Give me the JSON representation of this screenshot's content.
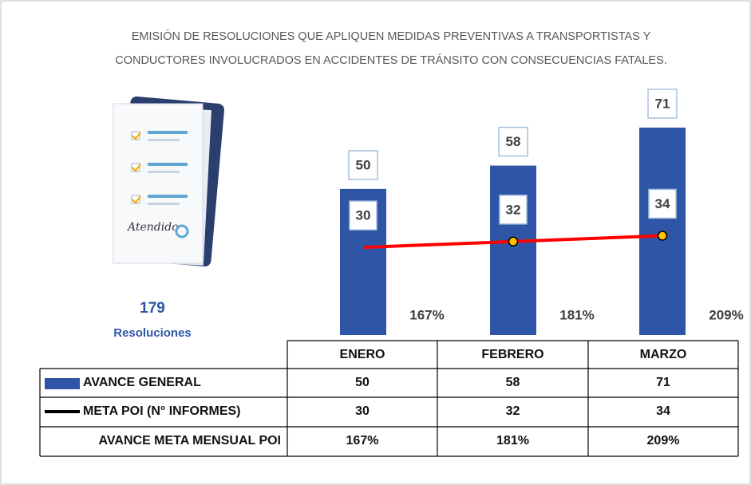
{
  "chart_data": {
    "type": "bar",
    "title": [
      "EMISIÓN DE RESOLUCIONES QUE APLIQUEN MEDIDAS PREVENTIVAS A TRANSPORTISTAS Y",
      "CONDUCTORES INVOLUCRADOS EN ACCIDENTES DE TRÁNSITO CON CONSECUENCIAS FATALES."
    ],
    "total": 179,
    "total_label": "Resoluciones",
    "categories": [
      "ENERO",
      "FEBRERO",
      "MARZO"
    ],
    "ylim": [
      0,
      80
    ],
    "series": [
      {
        "name": "AVANCE GENERAL",
        "type": "bar",
        "color": "#2f56a6",
        "values": [
          50,
          58,
          71
        ]
      },
      {
        "name": "META POI (N° INFORMES)",
        "type": "line",
        "color": "#ff0000",
        "marker_color": "#ffc000",
        "values": [
          30,
          32,
          34
        ]
      },
      {
        "name": "AVANCE META MENSUAL POI",
        "type": "label",
        "values": [
          167,
          181,
          209
        ],
        "value_labels": [
          "167%",
          "181%",
          "209%"
        ]
      }
    ]
  }
}
